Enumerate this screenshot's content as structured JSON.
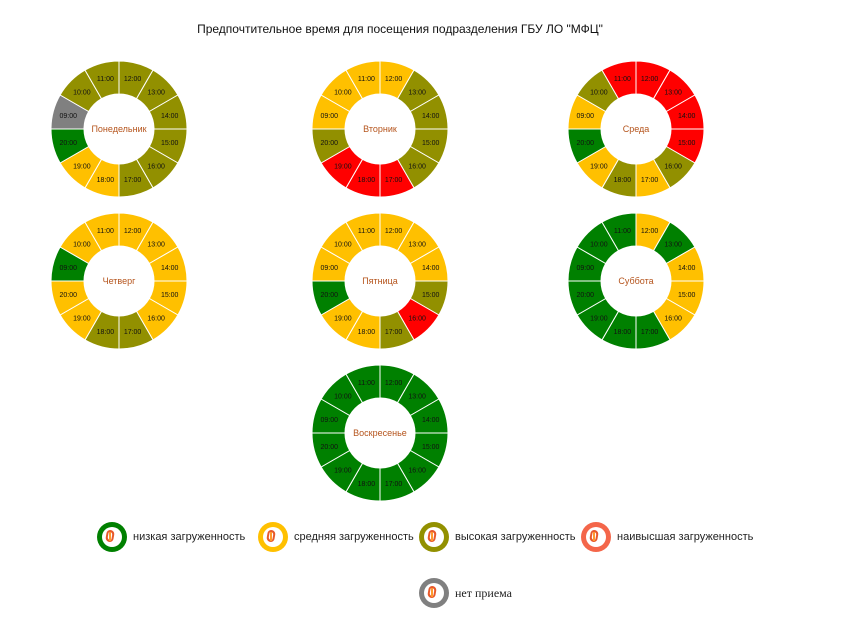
{
  "title": "Предпочтительное время для посещения подразделения ГБУ ЛО \"МФЦ\"",
  "colors": {
    "low": "#008000",
    "medium": "#ffc000",
    "high": "#929000",
    "highest": "#ff0000",
    "closed": "#808080"
  },
  "chart_data": [
    {
      "type": "donut",
      "day": "Понедельник",
      "hours": [
        "12:00",
        "13:00",
        "14:00",
        "15:00",
        "16:00",
        "17:00",
        "18:00",
        "19:00",
        "20:00",
        "09:00",
        "10:00",
        "11:00"
      ],
      "levels": [
        "high",
        "high",
        "high",
        "high",
        "high",
        "high",
        "medium",
        "medium",
        "low",
        "closed",
        "high",
        "high"
      ]
    },
    {
      "type": "donut",
      "day": "Вторник",
      "hours": [
        "12:00",
        "13:00",
        "14:00",
        "15:00",
        "16:00",
        "17:00",
        "18:00",
        "19:00",
        "20:00",
        "09:00",
        "10:00",
        "11:00"
      ],
      "levels": [
        "medium",
        "high",
        "high",
        "high",
        "high",
        "highest",
        "highest",
        "highest",
        "high",
        "medium",
        "medium",
        "medium"
      ]
    },
    {
      "type": "donut",
      "day": "Среда",
      "hours": [
        "12:00",
        "13:00",
        "14:00",
        "15:00",
        "16:00",
        "17:00",
        "18:00",
        "19:00",
        "20:00",
        "09:00",
        "10:00",
        "11:00"
      ],
      "levels": [
        "highest",
        "highest",
        "highest",
        "highest",
        "high",
        "medium",
        "high",
        "medium",
        "low",
        "medium",
        "high",
        "highest"
      ]
    },
    {
      "type": "donut",
      "day": "Четверг",
      "hours": [
        "12:00",
        "13:00",
        "14:00",
        "15:00",
        "16:00",
        "17:00",
        "18:00",
        "19:00",
        "20:00",
        "09:00",
        "10:00",
        "11:00"
      ],
      "levels": [
        "medium",
        "medium",
        "medium",
        "medium",
        "medium",
        "high",
        "high",
        "medium",
        "medium",
        "low",
        "medium",
        "medium"
      ]
    },
    {
      "type": "donut",
      "day": "Пятница",
      "hours": [
        "12:00",
        "13:00",
        "14:00",
        "15:00",
        "16:00",
        "17:00",
        "18:00",
        "19:00",
        "20:00",
        "09:00",
        "10:00",
        "11:00"
      ],
      "levels": [
        "medium",
        "medium",
        "medium",
        "high",
        "highest",
        "high",
        "medium",
        "medium",
        "low",
        "medium",
        "medium",
        "medium"
      ]
    },
    {
      "type": "donut",
      "day": "Суббота",
      "hours": [
        "12:00",
        "13:00",
        "14:00",
        "15:00",
        "16:00",
        "17:00",
        "18:00",
        "19:00",
        "20:00",
        "09:00",
        "10:00",
        "11:00"
      ],
      "levels": [
        "medium",
        "low",
        "medium",
        "medium",
        "medium",
        "low",
        "low",
        "low",
        "low",
        "low",
        "low",
        "low"
      ]
    },
    {
      "type": "donut",
      "day": "Воскресенье",
      "hours": [
        "12:00",
        "13:00",
        "14:00",
        "15:00",
        "16:00",
        "17:00",
        "18:00",
        "19:00",
        "20:00",
        "09:00",
        "10:00",
        "11:00"
      ],
      "levels": [
        "low",
        "low",
        "low",
        "low",
        "low",
        "low",
        "low",
        "low",
        "low",
        "low",
        "low",
        "low"
      ]
    }
  ],
  "legend": [
    {
      "key": "low",
      "label": "низкая загруженность"
    },
    {
      "key": "medium",
      "label": "средняя загруженность"
    },
    {
      "key": "high",
      "label": "высокая загруженность"
    },
    {
      "key": "highest",
      "label": "наивысшая загруженность"
    },
    {
      "key": "closed",
      "label": "нет приема"
    }
  ]
}
